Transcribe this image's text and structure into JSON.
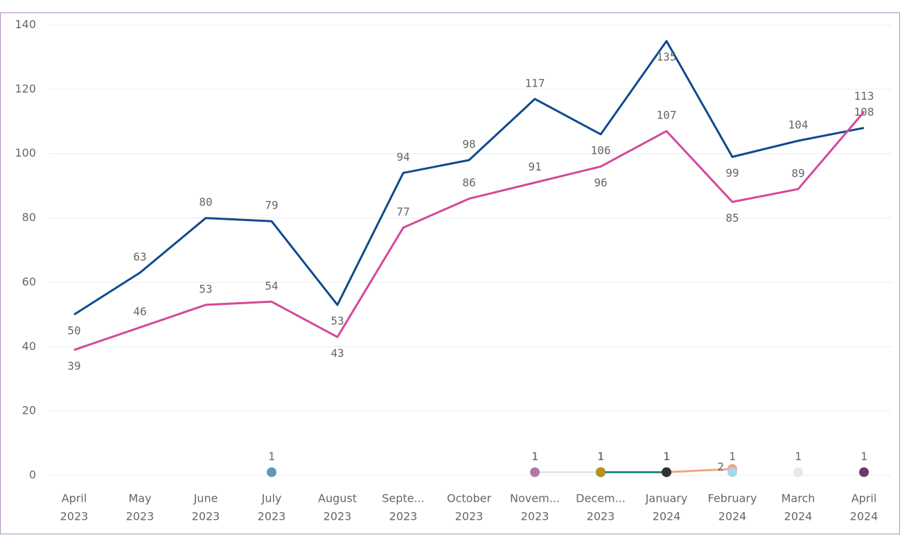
{
  "chart_data": {
    "type": "line",
    "categories": [
      [
        "April",
        "2023"
      ],
      [
        "May",
        "2023"
      ],
      [
        "June",
        "2023"
      ],
      [
        "July",
        "2023"
      ],
      [
        "August",
        "2023"
      ],
      [
        "Septe...",
        "2023"
      ],
      [
        "October",
        "2023"
      ],
      [
        "Novem...",
        "2023"
      ],
      [
        "Decem...",
        "2023"
      ],
      [
        "January",
        "2024"
      ],
      [
        "February",
        "2024"
      ],
      [
        "March",
        "2024"
      ],
      [
        "April",
        "2024"
      ]
    ],
    "ylim": [
      0,
      140
    ],
    "yticks": [
      0,
      20,
      40,
      60,
      80,
      100,
      120,
      140
    ],
    "grid": true,
    "series": [
      {
        "color": "#0d4a8f",
        "markers": false,
        "values": [
          50,
          63,
          80,
          79,
          53,
          94,
          98,
          117,
          106,
          135,
          99,
          104,
          108
        ],
        "label_positions": [
          "below",
          "above",
          "above",
          "above",
          "below",
          "above",
          "above",
          "above",
          "below",
          "below",
          "below",
          "above",
          "above"
        ]
      },
      {
        "color": "#d4489a",
        "markers": false,
        "values": [
          39,
          46,
          53,
          54,
          43,
          77,
          86,
          91,
          96,
          107,
          85,
          89,
          113
        ],
        "label_positions": [
          "below",
          "above",
          "above",
          "above",
          "below",
          "above",
          "above",
          "above",
          "below",
          "above",
          "below",
          "above",
          "above"
        ]
      },
      {
        "color": "#e6e6e6",
        "markers": true,
        "values": [
          null,
          null,
          null,
          null,
          null,
          null,
          null,
          1,
          1,
          null,
          null,
          null,
          null
        ]
      },
      {
        "color": "#5b9bb5",
        "markers": true,
        "values": [
          null,
          null,
          null,
          1,
          null,
          null,
          null,
          null,
          null,
          null,
          null,
          null,
          null
        ]
      },
      {
        "color": "#b07aa8",
        "markers": true,
        "values": [
          null,
          null,
          null,
          null,
          null,
          null,
          null,
          1,
          null,
          null,
          null,
          null,
          null
        ]
      },
      {
        "color": "#4a9bb8",
        "markers": true,
        "values": [
          null,
          null,
          null,
          null,
          null,
          null,
          null,
          null,
          1,
          null,
          null,
          null,
          null
        ]
      },
      {
        "color": "#1a8a7a",
        "markers": true,
        "values": [
          null,
          null,
          null,
          null,
          null,
          null,
          null,
          null,
          1,
          1,
          null,
          null,
          null
        ]
      },
      {
        "color": "#b8901c",
        "markers": true,
        "values": [
          null,
          null,
          null,
          null,
          null,
          null,
          null,
          null,
          1,
          null,
          null,
          null,
          null
        ]
      },
      {
        "color": "#f4a582",
        "markers": true,
        "values": [
          null,
          null,
          null,
          null,
          null,
          null,
          null,
          null,
          null,
          1,
          2,
          null,
          null
        ],
        "label_positions": [
          null,
          null,
          null,
          null,
          null,
          null,
          null,
          null,
          null,
          "above",
          "left",
          null,
          null
        ]
      },
      {
        "color": "#333333",
        "markers": true,
        "values": [
          null,
          null,
          null,
          null,
          null,
          null,
          null,
          null,
          null,
          1,
          null,
          null,
          null
        ]
      },
      {
        "color": "#a6d8ee",
        "markers": true,
        "values": [
          null,
          null,
          null,
          null,
          null,
          null,
          null,
          null,
          null,
          null,
          1,
          null,
          null
        ]
      },
      {
        "color": "#e8e8e8",
        "markers": true,
        "values": [
          null,
          null,
          null,
          null,
          null,
          null,
          null,
          null,
          null,
          null,
          null,
          1,
          null
        ]
      },
      {
        "color": "#6b3a6b",
        "markers": true,
        "values": [
          null,
          null,
          null,
          null,
          null,
          null,
          null,
          null,
          null,
          null,
          null,
          null,
          1
        ]
      }
    ]
  }
}
